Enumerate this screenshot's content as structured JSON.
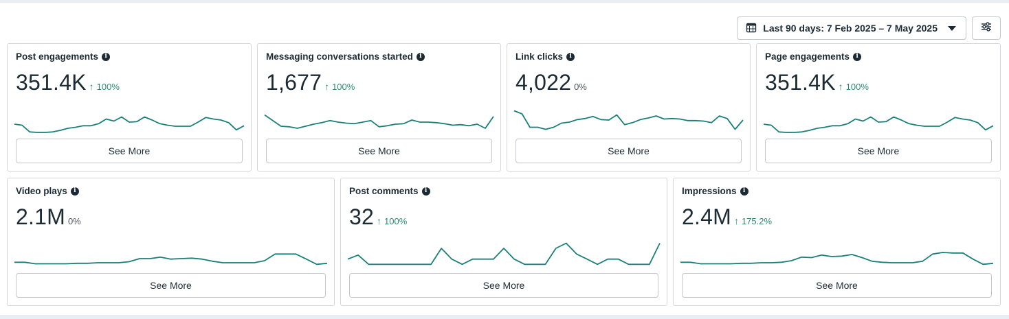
{
  "toolbar": {
    "date_range_label": "Last 90 days: 7 Feb 2025 – 7 May 2025",
    "calendar_icon": "calendar-icon",
    "dropdown_icon": "caret-down-icon",
    "filter_icon": "sliders-icon"
  },
  "colors": {
    "sparkline": "#1a7f79",
    "positive_change": "#2b8a6e"
  },
  "cards": [
    {
      "title": "Post engagements",
      "value": "351.4K",
      "change": "100%",
      "trend": "up",
      "button": "See More",
      "series": [
        40,
        42,
        55,
        56,
        56,
        55,
        52,
        48,
        46,
        43,
        43,
        39,
        30,
        34,
        26,
        36,
        35,
        26,
        32,
        39,
        42,
        44,
        44,
        44,
        36,
        27,
        30,
        32,
        37,
        51,
        43
      ]
    },
    {
      "title": "Messaging conversations started",
      "value": "1,677",
      "change": "100%",
      "trend": "up",
      "button": "See More",
      "series": [
        22,
        33,
        44,
        45,
        48,
        44,
        40,
        37,
        33,
        36,
        38,
        39,
        36,
        33,
        45,
        43,
        40,
        39,
        32,
        36,
        36,
        37,
        39,
        42,
        41,
        43,
        40,
        48,
        25
      ]
    },
    {
      "title": "Link clicks",
      "value": "4,022",
      "change": "0%",
      "trend": "none",
      "button": "See More",
      "series": [
        14,
        20,
        46,
        46,
        50,
        46,
        38,
        36,
        31,
        29,
        25,
        31,
        32,
        22,
        41,
        37,
        31,
        28,
        24,
        30,
        29,
        30,
        33,
        33,
        34,
        37,
        24,
        29,
        50,
        32
      ]
    },
    {
      "title": "Page engagements",
      "value": "351.4K",
      "change": "100%",
      "trend": "up",
      "button": "See More",
      "series": [
        40,
        42,
        55,
        56,
        56,
        55,
        52,
        48,
        46,
        43,
        43,
        39,
        30,
        34,
        26,
        36,
        35,
        26,
        32,
        39,
        42,
        44,
        44,
        44,
        36,
        27,
        30,
        32,
        37,
        51,
        43
      ]
    },
    {
      "title": "Video plays",
      "value": "2.1M",
      "change": "0%",
      "trend": "none",
      "button": "See More",
      "series": [
        47,
        47,
        50,
        50,
        50,
        50,
        49,
        49,
        48,
        48,
        48,
        46,
        40,
        40,
        37,
        41,
        40,
        39,
        41,
        45,
        48,
        48,
        48,
        48,
        44,
        31,
        31,
        31,
        41,
        51,
        49
      ]
    },
    {
      "title": "Post comments",
      "value": "32",
      "change": "100%",
      "trend": "up",
      "button": "See More",
      "series": [
        41,
        33,
        51,
        51,
        51,
        51,
        51,
        51,
        51,
        20,
        41,
        51,
        41,
        41,
        41,
        20,
        41,
        51,
        51,
        51,
        20,
        10,
        31,
        41,
        51,
        41,
        41,
        51,
        51,
        51,
        10
      ]
    },
    {
      "title": "Impressions",
      "value": "2.4M",
      "change": "175.2%",
      "trend": "up",
      "button": "See More",
      "series": [
        47,
        47,
        50,
        50,
        50,
        50,
        49,
        49,
        48,
        48,
        47,
        44,
        37,
        38,
        33,
        36,
        35,
        32,
        38,
        45,
        47,
        48,
        48,
        48,
        45,
        31,
        28,
        29,
        29,
        41,
        51,
        49
      ]
    }
  ]
}
